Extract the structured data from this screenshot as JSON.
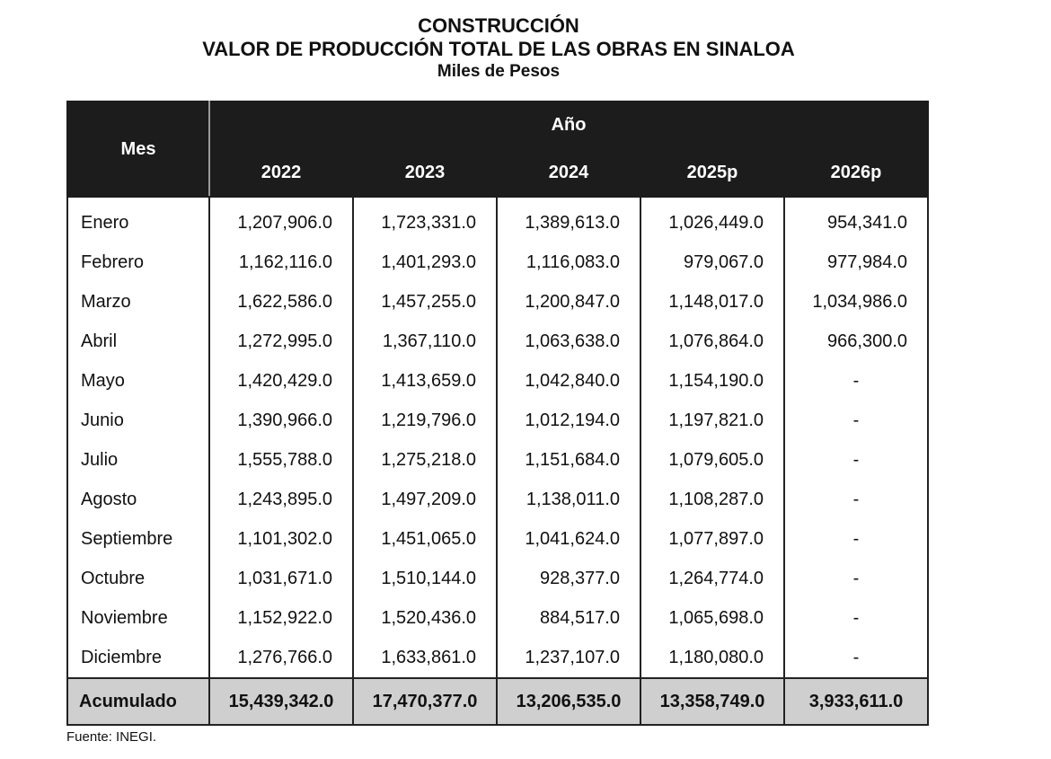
{
  "title": {
    "line1": "CONSTRUCCIÓN",
    "line2": "VALOR DE PRODUCCIÓN TOTAL DE LAS OBRAS EN SINALOA",
    "line3": "Miles de Pesos"
  },
  "table": {
    "month_header": "Mes",
    "year_group_header": "Año",
    "years": [
      "2022",
      "2023",
      "2024",
      "2025p",
      "2026p"
    ],
    "rows": [
      {
        "month": "Enero",
        "values": [
          "1,207,906.0",
          "1,723,331.0",
          "1,389,613.0",
          "1,026,449.0",
          "954,341.0"
        ]
      },
      {
        "month": "Febrero",
        "values": [
          "1,162,116.0",
          "1,401,293.0",
          "1,116,083.0",
          "979,067.0",
          "977,984.0"
        ]
      },
      {
        "month": "Marzo",
        "values": [
          "1,622,586.0",
          "1,457,255.0",
          "1,200,847.0",
          "1,148,017.0",
          "1,034,986.0"
        ]
      },
      {
        "month": "Abril",
        "values": [
          "1,272,995.0",
          "1,367,110.0",
          "1,063,638.0",
          "1,076,864.0",
          "966,300.0"
        ]
      },
      {
        "month": "Mayo",
        "values": [
          "1,420,429.0",
          "1,413,659.0",
          "1,042,840.0",
          "1,154,190.0",
          "-"
        ]
      },
      {
        "month": "Junio",
        "values": [
          "1,390,966.0",
          "1,219,796.0",
          "1,012,194.0",
          "1,197,821.0",
          "-"
        ]
      },
      {
        "month": "Julio",
        "values": [
          "1,555,788.0",
          "1,275,218.0",
          "1,151,684.0",
          "1,079,605.0",
          "-"
        ]
      },
      {
        "month": "Agosto",
        "values": [
          "1,243,895.0",
          "1,497,209.0",
          "1,138,011.0",
          "1,108,287.0",
          "-"
        ]
      },
      {
        "month": "Septiembre",
        "values": [
          "1,101,302.0",
          "1,451,065.0",
          "1,041,624.0",
          "1,077,897.0",
          "-"
        ]
      },
      {
        "month": "Octubre",
        "values": [
          "1,031,671.0",
          "1,510,144.0",
          "928,377.0",
          "1,264,774.0",
          "-"
        ]
      },
      {
        "month": "Noviembre",
        "values": [
          "1,152,922.0",
          "1,520,436.0",
          "884,517.0",
          "1,065,698.0",
          "-"
        ]
      },
      {
        "month": "Diciembre",
        "values": [
          "1,276,766.0",
          "1,633,861.0",
          "1,237,107.0",
          "1,180,080.0",
          "-"
        ]
      }
    ],
    "total": {
      "label": "Acumulado",
      "values": [
        "15,439,342.0",
        "17,470,377.0",
        "13,206,535.0",
        "13,358,749.0",
        "3,933,611.0"
      ]
    }
  },
  "source": "Fuente: INEGI."
}
